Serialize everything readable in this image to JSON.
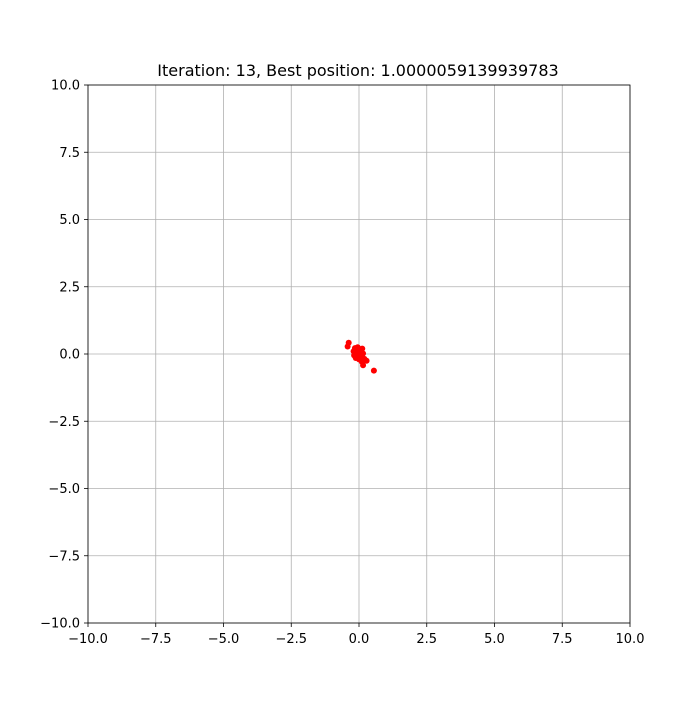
{
  "chart_data": {
    "type": "scatter",
    "title": "Iteration: 13, Best position: 1.0000059139939783",
    "xlabel": "",
    "ylabel": "",
    "xlim": [
      -10,
      10
    ],
    "ylim": [
      -10,
      10
    ],
    "grid": true,
    "x_ticks": [
      -10,
      -7.5,
      -5,
      -2.5,
      0,
      2.5,
      5,
      7.5,
      10
    ],
    "y_ticks": [
      -10,
      -7.5,
      -5,
      -2.5,
      0,
      2.5,
      5,
      7.5,
      10
    ],
    "x_tick_labels": [
      "−10.0",
      "−7.5",
      "−5.0",
      "−2.5",
      "0.0",
      "2.5",
      "5.0",
      "7.5",
      "10.0"
    ],
    "y_tick_labels": [
      "−10.0",
      "−7.5",
      "−5.0",
      "−2.5",
      "0.0",
      "2.5",
      "5.0",
      "7.5",
      "10.0"
    ],
    "colors": {
      "points": "#ff0000",
      "grid": "#b0b0b0"
    },
    "points": [
      {
        "x": -0.38,
        "y": 0.42
      },
      {
        "x": -0.42,
        "y": 0.28
      },
      {
        "x": -0.15,
        "y": 0.22
      },
      {
        "x": -0.05,
        "y": 0.25
      },
      {
        "x": 0.12,
        "y": 0.2
      },
      {
        "x": -0.2,
        "y": 0.1
      },
      {
        "x": -0.1,
        "y": 0.05
      },
      {
        "x": 0.02,
        "y": 0.08
      },
      {
        "x": 0.15,
        "y": 0.02
      },
      {
        "x": -0.18,
        "y": -0.05
      },
      {
        "x": -0.05,
        "y": -0.08
      },
      {
        "x": 0.08,
        "y": -0.1
      },
      {
        "x": -0.12,
        "y": -0.15
      },
      {
        "x": 0.0,
        "y": -0.2
      },
      {
        "x": 0.2,
        "y": -0.18
      },
      {
        "x": 0.28,
        "y": -0.25
      },
      {
        "x": 0.1,
        "y": -0.28
      },
      {
        "x": 0.15,
        "y": -0.42
      },
      {
        "x": -0.08,
        "y": 0.15
      },
      {
        "x": 0.05,
        "y": 0.12
      },
      {
        "x": -0.02,
        "y": -0.02
      },
      {
        "x": 0.55,
        "y": -0.62
      }
    ]
  }
}
